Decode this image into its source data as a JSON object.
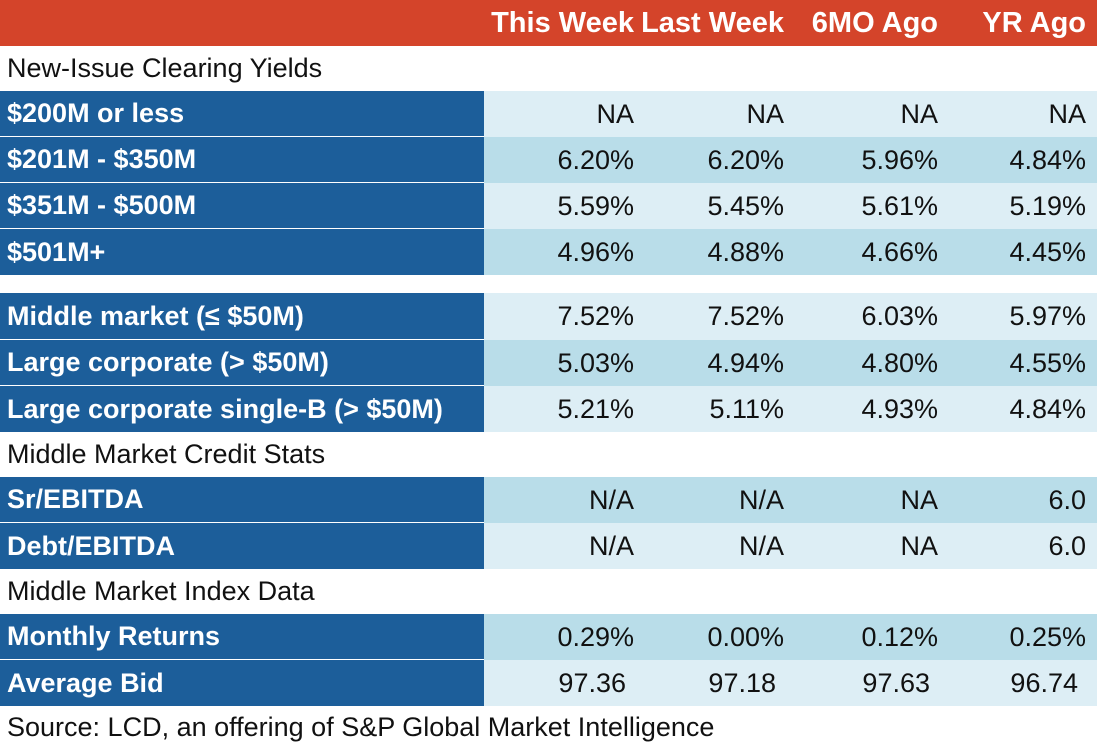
{
  "chart_data": {
    "type": "table",
    "columns": [
      "This Week",
      "Last Week",
      "6MO Ago",
      "YR Ago"
    ],
    "sections": [
      {
        "title": "New-Issue Clearing Yields",
        "rows": [
          {
            "label": "$200M or less",
            "values": [
              "NA",
              "NA",
              "NA",
              "NA"
            ]
          },
          {
            "label": "$201M - $350M",
            "values": [
              "6.20%",
              "6.20%",
              "5.96%",
              "4.84%"
            ]
          },
          {
            "label": "$351M - $500M",
            "values": [
              "5.59%",
              "5.45%",
              "5.61%",
              "5.19%"
            ]
          },
          {
            "label": "$501M+",
            "values": [
              "4.96%",
              "4.88%",
              "4.66%",
              "4.45%"
            ]
          }
        ]
      },
      {
        "title": "",
        "rows": [
          {
            "label": "Middle market (≤ $50M)",
            "values": [
              "7.52%",
              "7.52%",
              "6.03%",
              "5.97%"
            ]
          },
          {
            "label": "Large corporate (> $50M)",
            "values": [
              "5.03%",
              "4.94%",
              "4.80%",
              "4.55%"
            ]
          },
          {
            "label": "Large corporate single-B (> $50M)",
            "values": [
              "5.21%",
              "5.11%",
              "4.93%",
              "4.84%"
            ]
          }
        ]
      },
      {
        "title": "Middle Market Credit Stats",
        "rows": [
          {
            "label": "Sr/EBITDA",
            "values": [
              "N/A",
              "N/A",
              "NA",
              "6.0"
            ]
          },
          {
            "label": "Debt/EBITDA",
            "values": [
              "N/A",
              "N/A",
              "NA",
              "6.0"
            ]
          }
        ]
      },
      {
        "title": "Middle Market Index Data",
        "rows": [
          {
            "label": "Monthly Returns",
            "values": [
              "0.29%",
              "0.00%",
              "0.12%",
              "0.25%"
            ]
          },
          {
            "label": "Average Bid",
            "values": [
              "97.36",
              "97.18",
              "97.63",
              "96.74"
            ]
          }
        ]
      }
    ],
    "source": "Source: LCD, an offering of S&P Global Market Intelligence",
    "colors": {
      "header_bg": "#d4442a",
      "label_bg": "#1c5e9a",
      "row_light": "#ddeef5",
      "row_mid": "#b9dde9"
    }
  }
}
